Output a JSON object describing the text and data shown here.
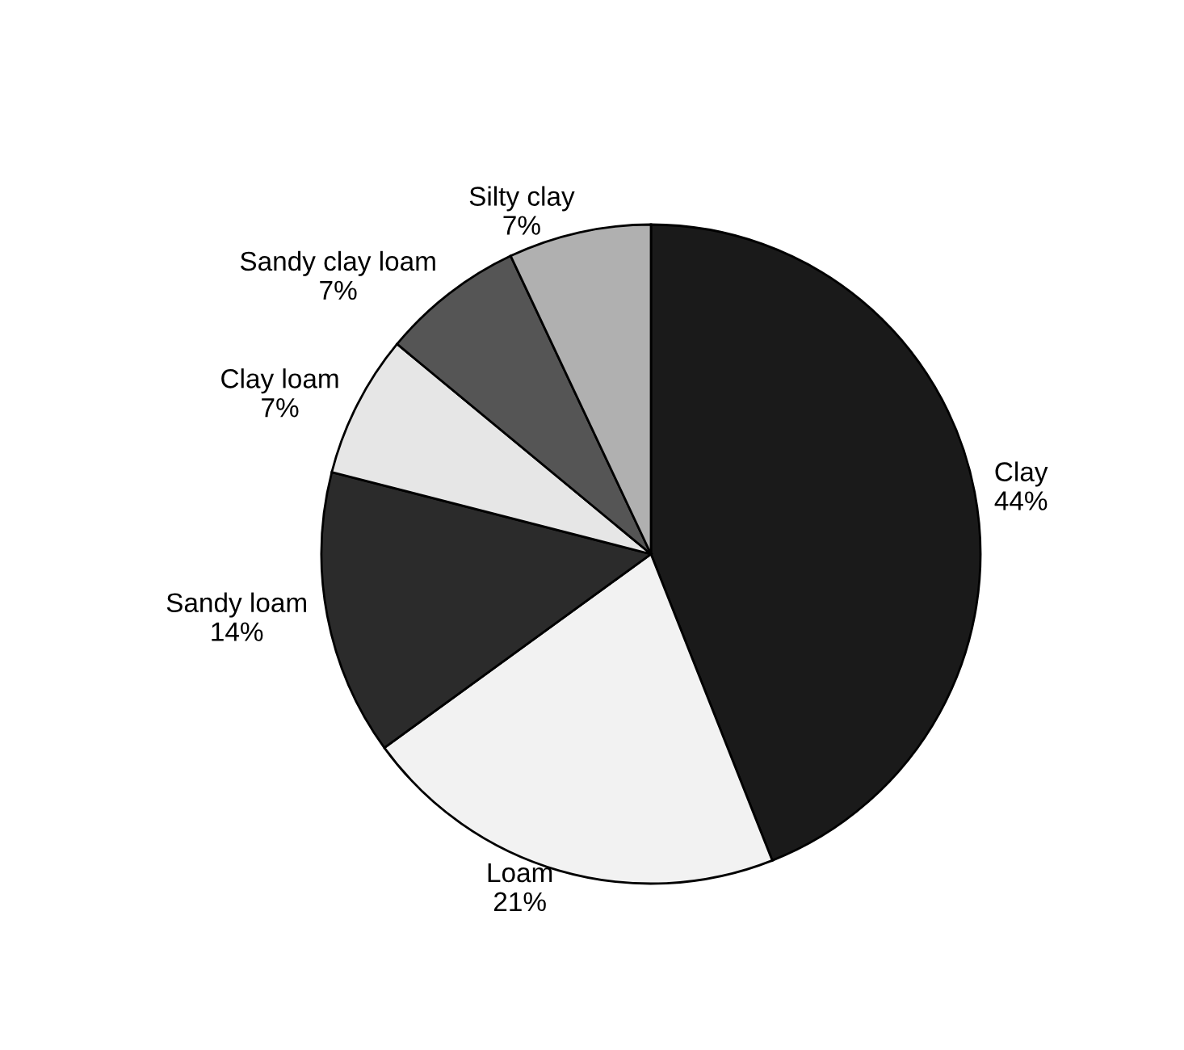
{
  "chart_data": {
    "type": "pie",
    "categories": [
      "Clay",
      "Loam",
      "Sandy loam",
      "Clay loam",
      "Sandy clay loam",
      "Silty clay"
    ],
    "values": [
      44,
      21,
      14,
      7,
      7,
      7
    ],
    "value_labels": [
      "44%",
      "21%",
      "14%",
      "7%",
      "7%",
      "7%"
    ],
    "colors": [
      "#1a1a1a",
      "#f2f2f2",
      "#2b2b2b",
      "#e6e6e6",
      "#555555",
      "#b0b0b0"
    ]
  }
}
